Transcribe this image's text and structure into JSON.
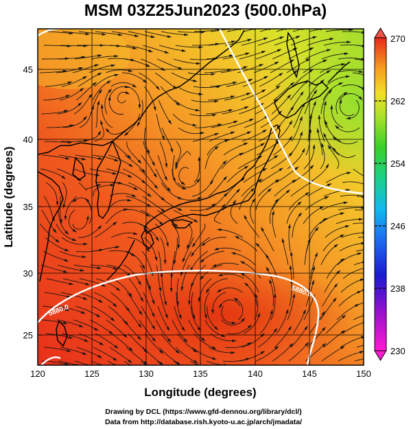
{
  "title": "MSM 03Z25Jun2023 (500.0hPa)",
  "xaxis": {
    "label": "Longitude (degrees)",
    "range": [
      120,
      150
    ],
    "ticks": [
      "120",
      "125",
      "130",
      "135",
      "140",
      "145",
      "150"
    ]
  },
  "yaxis": {
    "label": "Latitude  (degrees)",
    "range": [
      22.5,
      47.5
    ],
    "ticks": [
      "25",
      "30",
      "35",
      "40",
      "45"
    ]
  },
  "colorbar": {
    "range": [
      230,
      270
    ],
    "ticks": [
      "230",
      "238",
      "246",
      "254",
      "262",
      "270"
    ]
  },
  "contours": [
    {
      "label": "5880.0",
      "color": "#ffffff"
    }
  ],
  "footer": {
    "line1": "Drawing by DCL (https://www.gfd-dennou.org/library/dcl/)",
    "line2": "Data from http://database.rish.kyoto-u.ac.jp/arch/jmadata/"
  }
}
